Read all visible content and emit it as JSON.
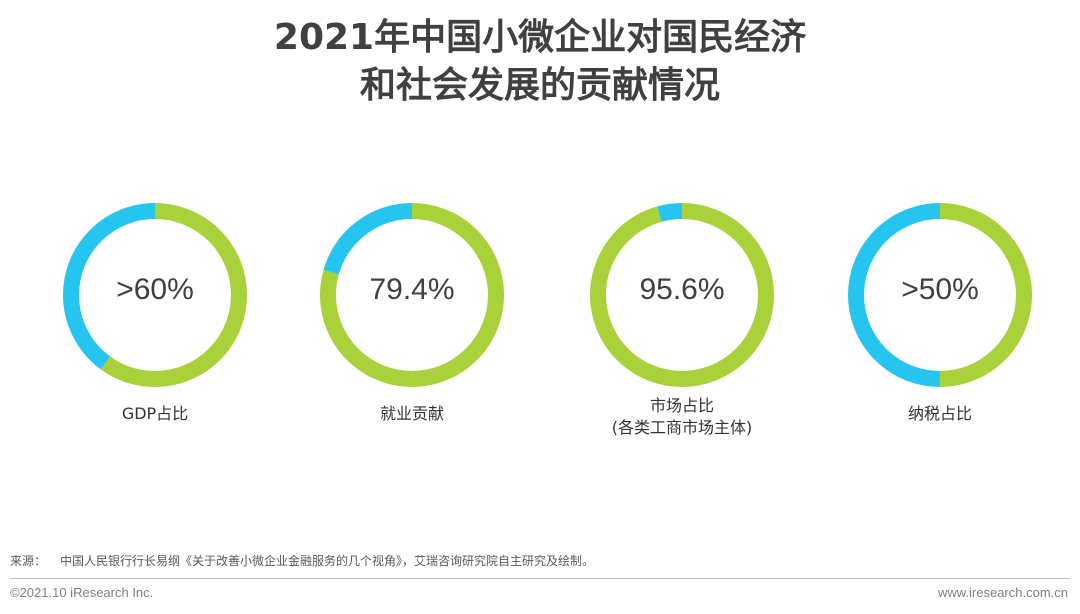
{
  "title": {
    "line1": "2021年中国小微企业对国民经济",
    "line2": "和社会发展的贡献情况"
  },
  "colors": {
    "primary": "#A9D13A",
    "secondary": "#25C5F0"
  },
  "chart_data": [
    {
      "type": "pie",
      "value_label": ">60%",
      "caption": [
        "GDP占比"
      ],
      "values": [
        60,
        40
      ]
    },
    {
      "type": "pie",
      "value_label": "79.4%",
      "caption": [
        "就业贡献"
      ],
      "values": [
        79.4,
        20.6
      ]
    },
    {
      "type": "pie",
      "value_label": "95.6%",
      "caption": [
        "市场占比",
        "(各类工商市场主体)"
      ],
      "values": [
        95.6,
        4.4
      ]
    },
    {
      "type": "pie",
      "value_label": ">50%",
      "caption": [
        "纳税占比"
      ],
      "values": [
        50,
        50
      ]
    }
  ],
  "source": {
    "label": "来源：",
    "text": "中国人民银行行长易纲《关于改善小微企业金融服务的几个视角》，艾瑞咨询研究院自主研究及绘制。"
  },
  "footer": {
    "copyright": "©2021.10 iResearch Inc.",
    "url": "www.iresearch.com.cn"
  }
}
